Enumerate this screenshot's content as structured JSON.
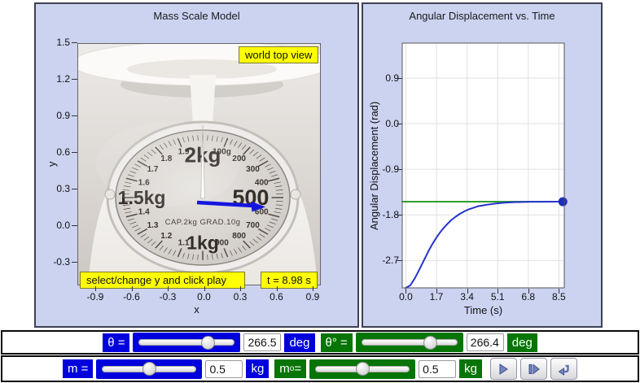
{
  "left_panel": {
    "title": "Mass Scale Model",
    "x_axis": {
      "title": "x",
      "ticks": [
        "-0.9",
        "-0.6",
        "-0.3",
        "0.0",
        "0.3",
        "0.6",
        "0.9"
      ]
    },
    "y_axis": {
      "title": "y",
      "ticks": [
        "1.5",
        "1.2",
        "0.9",
        "0.6",
        "0.3",
        "0.0",
        "-0.3"
      ]
    },
    "world_top_view_label": "world top view",
    "hint_label": "select/change y and click play",
    "time_label": "t = 8.98 s",
    "dial": {
      "center_caption": "CAP.2kg   GRAD.10g",
      "big_marks": [
        {
          "text": "2kg",
          "angle": 0
        },
        {
          "text": "500",
          "angle": 90
        },
        {
          "text": "1kg",
          "angle": 180
        },
        {
          "text": "1.5kg",
          "angle": 270
        }
      ],
      "small_marks": [
        {
          "text": "100g",
          "angle": 18
        },
        {
          "text": "200",
          "angle": 36
        },
        {
          "text": "300",
          "angle": 54
        },
        {
          "text": "400",
          "angle": 72
        },
        {
          "text": "600",
          "angle": 108
        },
        {
          "text": "700",
          "angle": 126
        },
        {
          "text": "800",
          "angle": 144
        },
        {
          "text": "900",
          "angle": 162
        },
        {
          "text": "1.1",
          "angle": 198
        },
        {
          "text": "1.2",
          "angle": 216
        },
        {
          "text": "1.3",
          "angle": 234
        },
        {
          "text": "1.4",
          "angle": 252
        },
        {
          "text": "1.6",
          "angle": 288
        },
        {
          "text": "1.7",
          "angle": 306
        },
        {
          "text": "1.8",
          "angle": 324
        },
        {
          "text": "1.9",
          "angle": 342
        }
      ]
    }
  },
  "chart_data": {
    "type": "line",
    "title": "Angular Displacement vs. Time",
    "xlabel": "Time (s)",
    "ylabel": "Angular Displacement (rad)",
    "x_ticks": [
      "0.0",
      "1.7",
      "3.4",
      "5.1",
      "6.8",
      "8.5"
    ],
    "x_tick_values": [
      0,
      1.7,
      3.4,
      5.1,
      6.8,
      8.5
    ],
    "y_ticks": [
      "0.9",
      "0.0",
      "-0.9",
      "-1.8",
      "-2.7"
    ],
    "y_tick_values": [
      0.9,
      0,
      -0.9,
      -1.8,
      -2.7
    ],
    "xlim": [
      -0.2,
      8.8
    ],
    "ylim": [
      -3.24,
      1.59
    ],
    "grid": true,
    "legend": "none",
    "series": [
      {
        "name": "angular-displacement",
        "color": "#2633cc",
        "points": [
          [
            0,
            -3.24
          ],
          [
            0.25,
            -3.19
          ],
          [
            0.5,
            -3.05
          ],
          [
            0.75,
            -2.88
          ],
          [
            1,
            -2.7
          ],
          [
            1.25,
            -2.52
          ],
          [
            1.5,
            -2.36
          ],
          [
            1.75,
            -2.22
          ],
          [
            2,
            -2.1
          ],
          [
            2.25,
            -2.0
          ],
          [
            2.5,
            -1.91
          ],
          [
            2.75,
            -1.84
          ],
          [
            3,
            -1.78
          ],
          [
            3.25,
            -1.73
          ],
          [
            3.5,
            -1.69
          ],
          [
            3.75,
            -1.66
          ],
          [
            4,
            -1.63
          ],
          [
            4.25,
            -1.615
          ],
          [
            4.5,
            -1.6
          ],
          [
            5,
            -1.575
          ],
          [
            5.5,
            -1.56
          ],
          [
            6,
            -1.55
          ],
          [
            6.5,
            -1.545
          ],
          [
            7,
            -1.542
          ],
          [
            7.5,
            -1.541
          ],
          [
            8,
            -1.54
          ],
          [
            8.5,
            -1.54
          ],
          [
            8.75,
            -1.54
          ]
        ]
      },
      {
        "name": "target-angle",
        "color": "#2f9e2f",
        "points": [
          [
            -0.2,
            -1.54
          ],
          [
            8.8,
            -1.54
          ]
        ]
      }
    ],
    "end_marker": {
      "x": 8.72,
      "y": -1.54,
      "color": "#1c2fb5"
    }
  },
  "controls": {
    "theta": {
      "label": "θ =",
      "value": "266.5",
      "unit": "deg",
      "slider_pos": 0.73
    },
    "theta_target": {
      "label": "θ° =",
      "value": "266.4",
      "unit": "deg",
      "slider_pos": 0.72
    },
    "m": {
      "label": "m =",
      "value": "0.5",
      "unit": "kg",
      "slider_pos": 0.5
    },
    "m_target": {
      "base": "m",
      "sub": "o",
      "suffix": " =",
      "value": "0.5",
      "unit": "kg",
      "slider_pos": 0.5
    },
    "buttons": {
      "play": "play-icon",
      "step": "step-forward-icon",
      "reset": "reset-icon"
    }
  },
  "colors": {
    "panel_bg": "#ccd3f1",
    "panel_border": "#3f4254",
    "control_blue": "#0000dd",
    "control_green": "#067506",
    "label_yellow": "#ffff00",
    "curve_blue": "#2633cc",
    "target_green": "#2f9e2f",
    "needle_arrow_blue": "#1515e0"
  }
}
